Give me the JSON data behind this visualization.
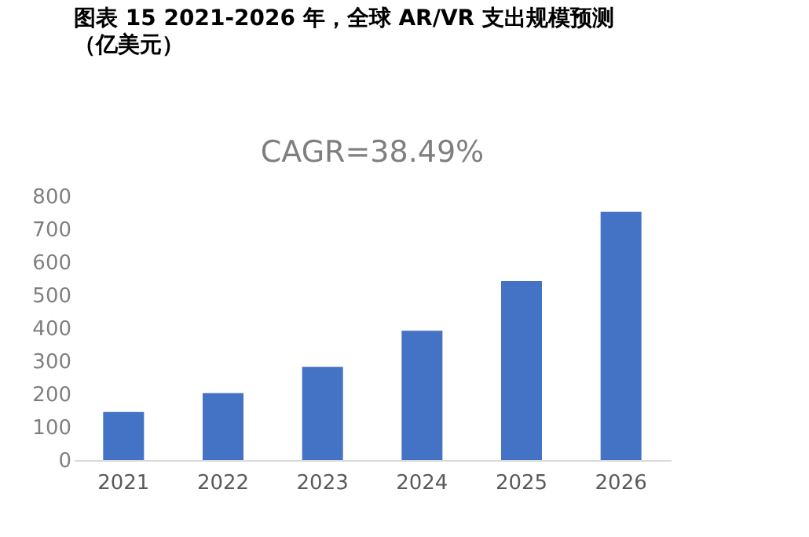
{
  "chart_data": {
    "type": "bar",
    "title": "图表 15 2021-2026 年，全球 AR/VR 支出规模预测",
    "subtitle": "（亿美元）",
    "categories": [
      "2021",
      "2022",
      "2023",
      "2024",
      "2025",
      "2026"
    ],
    "values": [
      146,
      203,
      283,
      392,
      543,
      753
    ],
    "color": "#4472c4",
    "ylim": [
      0,
      800
    ],
    "yticks": [
      0,
      100,
      200,
      300,
      400,
      500,
      600,
      700,
      800
    ],
    "grid": false,
    "annotations": [
      "CAGR=38.49%"
    ]
  }
}
